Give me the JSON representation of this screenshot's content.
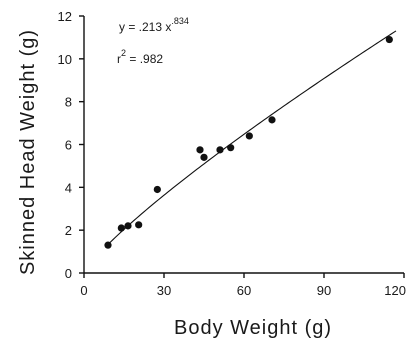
{
  "chart_data": {
    "type": "scatter",
    "xlabel": "Body Weight  (g)",
    "ylabel": "Skinned Head Weight  (g)",
    "xlim": [
      0,
      120
    ],
    "ylim": [
      0,
      12
    ],
    "x_ticks": [
      0,
      30,
      60,
      90,
      120
    ],
    "x_tick_labels": [
      "0",
      "30",
      "60",
      "90",
      "120"
    ],
    "y_ticks": [
      0,
      2,
      4,
      6,
      8,
      10,
      12
    ],
    "y_tick_labels": [
      "0",
      "2",
      "4",
      "6",
      "8",
      "10",
      "12"
    ],
    "grid": false,
    "series": [
      {
        "type": "scatter",
        "x": [
          9,
          14,
          16.5,
          20.5,
          27.5,
          43.5,
          45,
          51,
          55,
          62,
          70.5,
          114.5
        ],
        "y": [
          1.3,
          2.1,
          2.2,
          2.25,
          3.9,
          5.75,
          5.4,
          5.75,
          5.85,
          6.4,
          7.15,
          10.9
        ]
      },
      {
        "type": "line",
        "equation": {
          "a": 0.213,
          "b": 0.834
        },
        "x_range": [
          9,
          117
        ]
      }
    ],
    "annotations": {
      "equation_base": "y = .213  x",
      "equation_exponent": ".834",
      "r2_base": "r",
      "r2_exponent": "2",
      "r2_value": " = .982"
    }
  }
}
